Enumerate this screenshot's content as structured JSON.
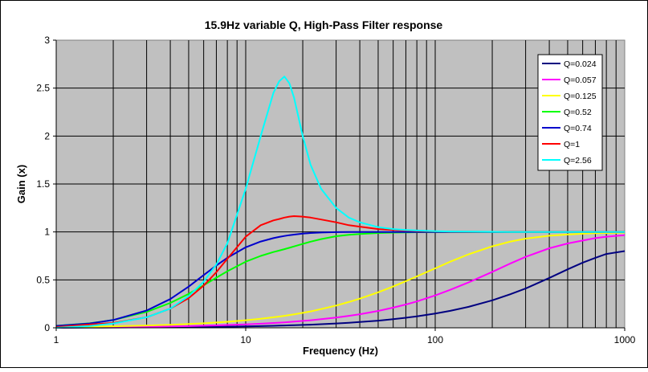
{
  "chart_data": {
    "type": "line",
    "title": "15.9Hz variable Q, High-Pass Filter response",
    "xlabel": "Frequency (Hz)",
    "ylabel": "Gain (x)",
    "x_scale": "log",
    "xlim": [
      1,
      1000
    ],
    "ylim": [
      0,
      3
    ],
    "x_ticks": [
      "1",
      "10",
      "100",
      "1000"
    ],
    "y_ticks": [
      "0",
      "0.5",
      "1",
      "1.5",
      "2",
      "2.5",
      "3"
    ],
    "grid": true,
    "legend_position": "top-right",
    "plot_background": "#c0c0c0",
    "cutoff_hz": 15.9,
    "x": [
      1,
      1.5,
      2,
      3,
      4,
      5,
      6,
      7,
      8,
      10,
      12,
      14,
      15,
      16,
      17,
      18,
      20,
      22,
      25,
      30,
      35,
      40,
      50,
      60,
      70,
      80,
      100,
      120,
      150,
      200,
      250,
      300,
      400,
      500,
      600,
      700,
      800,
      1000
    ],
    "series": [
      {
        "name": "Q=0.024",
        "color": "#000080",
        "values": [
          0.0,
          0.002,
          0.003,
          0.005,
          0.006,
          0.008,
          0.009,
          0.011,
          0.012,
          0.015,
          0.018,
          0.021,
          0.023,
          0.024,
          0.026,
          0.027,
          0.03,
          0.033,
          0.038,
          0.045,
          0.053,
          0.06,
          0.075,
          0.09,
          0.105,
          0.119,
          0.149,
          0.177,
          0.219,
          0.287,
          0.351,
          0.41,
          0.52,
          0.61,
          0.68,
          0.73,
          0.77,
          0.8
        ]
      },
      {
        "name": "Q=0.057",
        "color": "#ff00ff",
        "values": [
          0.003,
          0.005,
          0.007,
          0.011,
          0.014,
          0.018,
          0.022,
          0.025,
          0.029,
          0.036,
          0.043,
          0.05,
          0.054,
          0.057,
          0.061,
          0.065,
          0.072,
          0.079,
          0.09,
          0.107,
          0.125,
          0.142,
          0.176,
          0.21,
          0.243,
          0.275,
          0.338,
          0.396,
          0.474,
          0.583,
          0.672,
          0.74,
          0.83,
          0.88,
          0.91,
          0.935,
          0.95,
          0.965
        ]
      },
      {
        "name": "Q=0.125",
        "color": "#ffff00",
        "values": [
          0.008,
          0.012,
          0.016,
          0.024,
          0.032,
          0.039,
          0.047,
          0.055,
          0.063,
          0.079,
          0.094,
          0.11,
          0.117,
          0.125,
          0.133,
          0.141,
          0.156,
          0.171,
          0.195,
          0.232,
          0.269,
          0.304,
          0.37,
          0.431,
          0.487,
          0.536,
          0.62,
          0.69,
          0.767,
          0.85,
          0.9,
          0.93,
          0.96,
          0.973,
          0.981,
          0.986,
          0.989,
          0.993
        ]
      },
      {
        "name": "Q=0.52",
        "color": "#00ff00",
        "values": [
          0.021,
          0.047,
          0.081,
          0.166,
          0.26,
          0.354,
          0.443,
          0.523,
          0.59,
          0.69,
          0.75,
          0.79,
          0.805,
          0.82,
          0.835,
          0.849,
          0.875,
          0.898,
          0.925,
          0.955,
          0.97,
          0.979,
          0.989,
          0.993,
          0.995,
          0.997,
          0.998,
          0.999,
          0.999,
          1.0,
          1.0,
          1.0,
          1.0,
          1.0,
          1.0,
          1.0,
          1.0,
          1.0
        ]
      },
      {
        "name": "Q=0.74",
        "color": "#0000cc",
        "values": [
          0.02,
          0.045,
          0.081,
          0.18,
          0.3,
          0.43,
          0.55,
          0.65,
          0.73,
          0.84,
          0.9,
          0.935,
          0.948,
          0.958,
          0.966,
          0.972,
          0.982,
          0.989,
          0.994,
          0.998,
          0.999,
          1.0,
          1.0,
          1.0,
          1.0,
          1.0,
          1.0,
          1.0,
          1.0,
          1.0,
          1.0,
          1.0,
          1.0,
          1.0,
          1.0,
          1.0,
          1.0,
          1.0
        ]
      },
      {
        "name": "Q=1",
        "color": "#ff0000",
        "values": [
          0.008,
          0.034,
          0.05,
          0.11,
          0.2,
          0.31,
          0.44,
          0.58,
          0.72,
          0.95,
          1.07,
          1.12,
          1.135,
          1.15,
          1.16,
          1.165,
          1.16,
          1.15,
          1.13,
          1.1,
          1.07,
          1.055,
          1.03,
          1.02,
          1.015,
          1.01,
          1.006,
          1.004,
          1.002,
          1.001,
          1.0,
          1.0,
          1.0,
          1.0,
          1.0,
          1.0,
          1.0,
          1.0
        ]
      },
      {
        "name": "Q=2.56",
        "color": "#00ffff",
        "values": [
          0.0,
          0.019,
          0.045,
          0.11,
          0.2,
          0.33,
          0.48,
          0.66,
          0.88,
          1.45,
          2.0,
          2.45,
          2.57,
          2.62,
          2.55,
          2.4,
          2.0,
          1.7,
          1.45,
          1.25,
          1.15,
          1.1,
          1.05,
          1.03,
          1.02,
          1.015,
          1.008,
          1.005,
          1.003,
          1.001,
          1.0,
          1.0,
          1.0,
          1.0,
          1.0,
          1.0,
          1.0,
          1.0
        ]
      }
    ]
  }
}
